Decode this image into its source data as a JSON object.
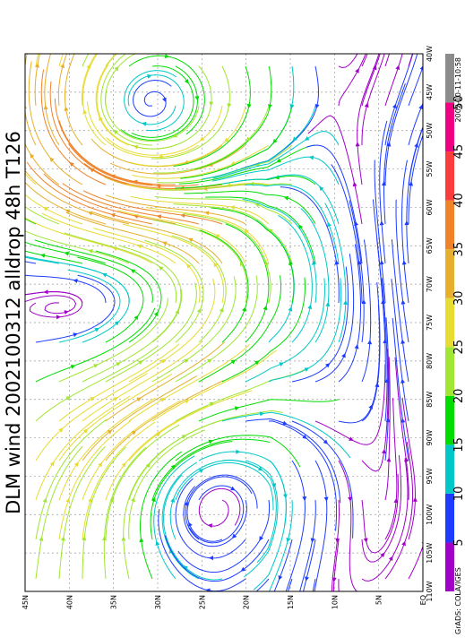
{
  "title": "DLM wind 2002100312 alldrop 48h T126",
  "timestamp": "2002-10-11-10:58",
  "credit": "GrADS: COLA/IGES",
  "map": {
    "lat_labels": [
      "45N",
      "40N",
      "35N",
      "30N",
      "25N",
      "20N",
      "15N",
      "10N",
      "5N",
      "EQ"
    ],
    "lon_labels": [
      "110W",
      "105W",
      "100W",
      "95W",
      "90W",
      "85W",
      "80W",
      "75W",
      "70W",
      "65W",
      "60W",
      "55W",
      "50W",
      "45W",
      "40W"
    ]
  },
  "colorbar": {
    "labels": [
      "5",
      "10",
      "15",
      "20",
      "25",
      "30",
      "35",
      "40",
      "45",
      "50"
    ],
    "colors": [
      "#a000c8",
      "#1e3cff",
      "#00c8c8",
      "#00dc00",
      "#a0e632",
      "#e6dc32",
      "#e6af2d",
      "#f08228",
      "#fa3c3c",
      "#f00082",
      "#8c8c8c"
    ]
  }
}
